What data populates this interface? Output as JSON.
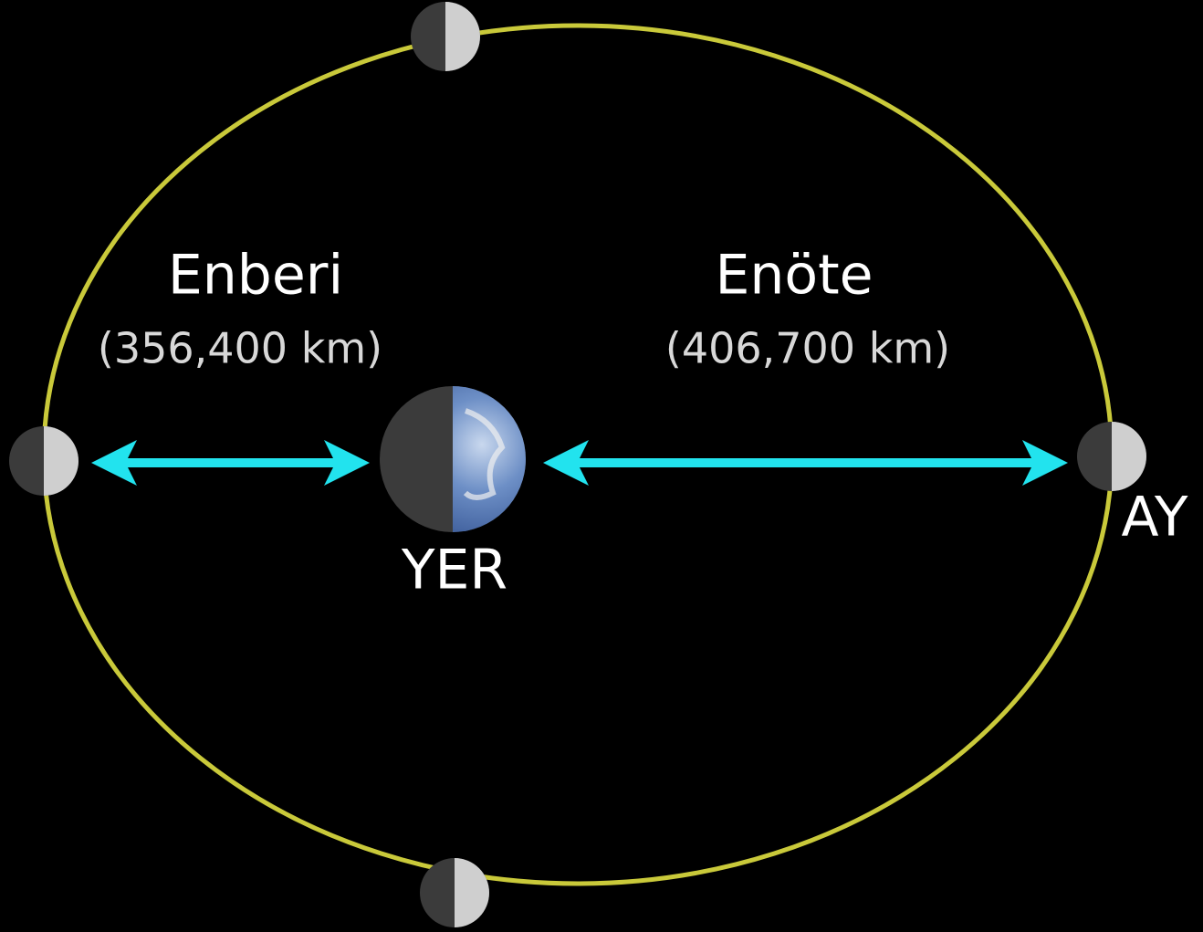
{
  "perigee": {
    "label": "Enberi",
    "distance": "(356,400 km)"
  },
  "apogee": {
    "label": "Enöte",
    "distance": "(406,700 km)"
  },
  "earth": {
    "label": "YER"
  },
  "moon": {
    "label": "AY"
  }
}
